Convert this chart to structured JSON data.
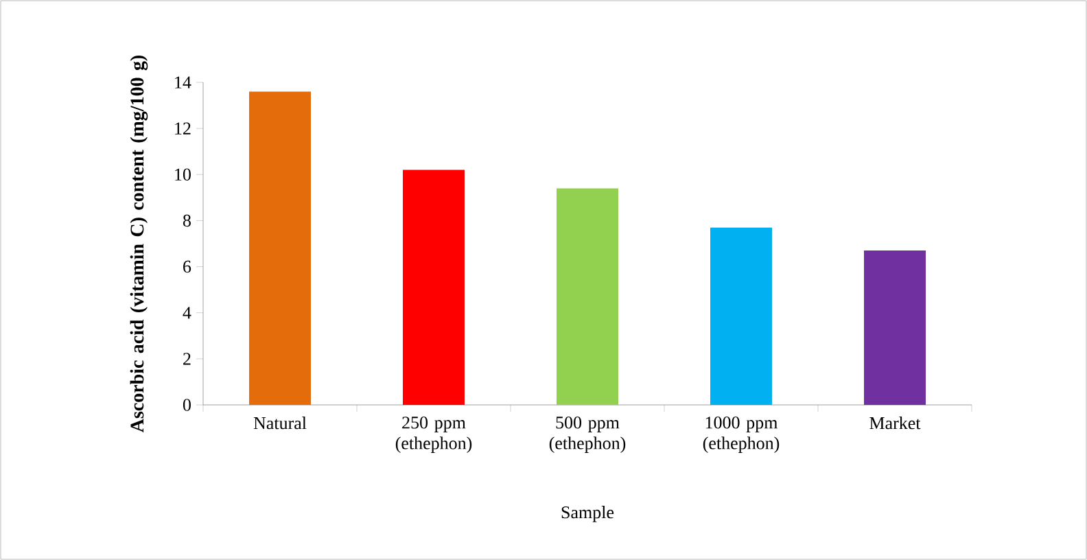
{
  "chart_data": {
    "type": "bar",
    "xlabel": "Sample",
    "ylabel": "Ascorbic acid (vitamin C) content (mg/100 g)",
    "categories": [
      "Natural",
      "250 ppm (ethephon)",
      "500 ppm (ethephon)",
      "1000 ppm (ethephon)",
      "Market"
    ],
    "values": [
      13.6,
      10.2,
      9.4,
      7.7,
      6.7
    ],
    "colors": [
      "#e46c0a",
      "#ff0000",
      "#92d050",
      "#00b0f0",
      "#7030a0"
    ],
    "ylim": [
      0,
      14
    ],
    "yticks": [
      0,
      2,
      4,
      6,
      8,
      10,
      12,
      14
    ],
    "grid": false
  }
}
